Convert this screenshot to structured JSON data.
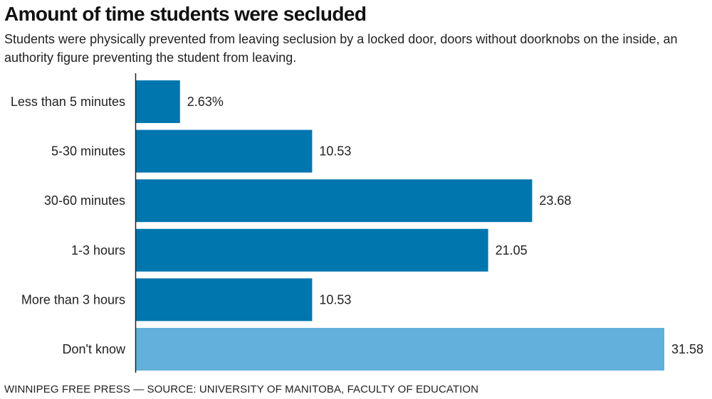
{
  "header": {
    "title": "Amount of time students were secluded",
    "subtitle": "Students were physically prevented from leaving seclusion by a locked door, doors without doorknobs on the inside, an authority figure preventing the student from leaving."
  },
  "footer": {
    "credit": "WINNIPEG FREE PRESS — SOURCE: UNIVERSITY OF MANITOBA, FACULTY OF EDUCATION"
  },
  "colors": {
    "primary": "#0076ae",
    "highlight": "#62b0db",
    "axis": "#222222"
  },
  "chart_data": {
    "type": "bar",
    "orientation": "horizontal",
    "title": "Amount of time students were secluded",
    "categories": [
      "Less than 5 minutes",
      "5-30 minutes",
      "30-60 minutes",
      "1-3 hours",
      "More than 3 hours",
      "Don't know"
    ],
    "values": [
      2.63,
      10.53,
      23.68,
      21.05,
      10.53,
      31.58
    ],
    "value_labels": [
      "2.63%",
      "10.53",
      "23.68",
      "21.05",
      "10.53",
      "31.58"
    ],
    "highlighted": [
      false,
      false,
      false,
      false,
      false,
      true
    ],
    "xlim": [
      0,
      31.58
    ],
    "grid": false,
    "xlabel": "",
    "ylabel": ""
  }
}
